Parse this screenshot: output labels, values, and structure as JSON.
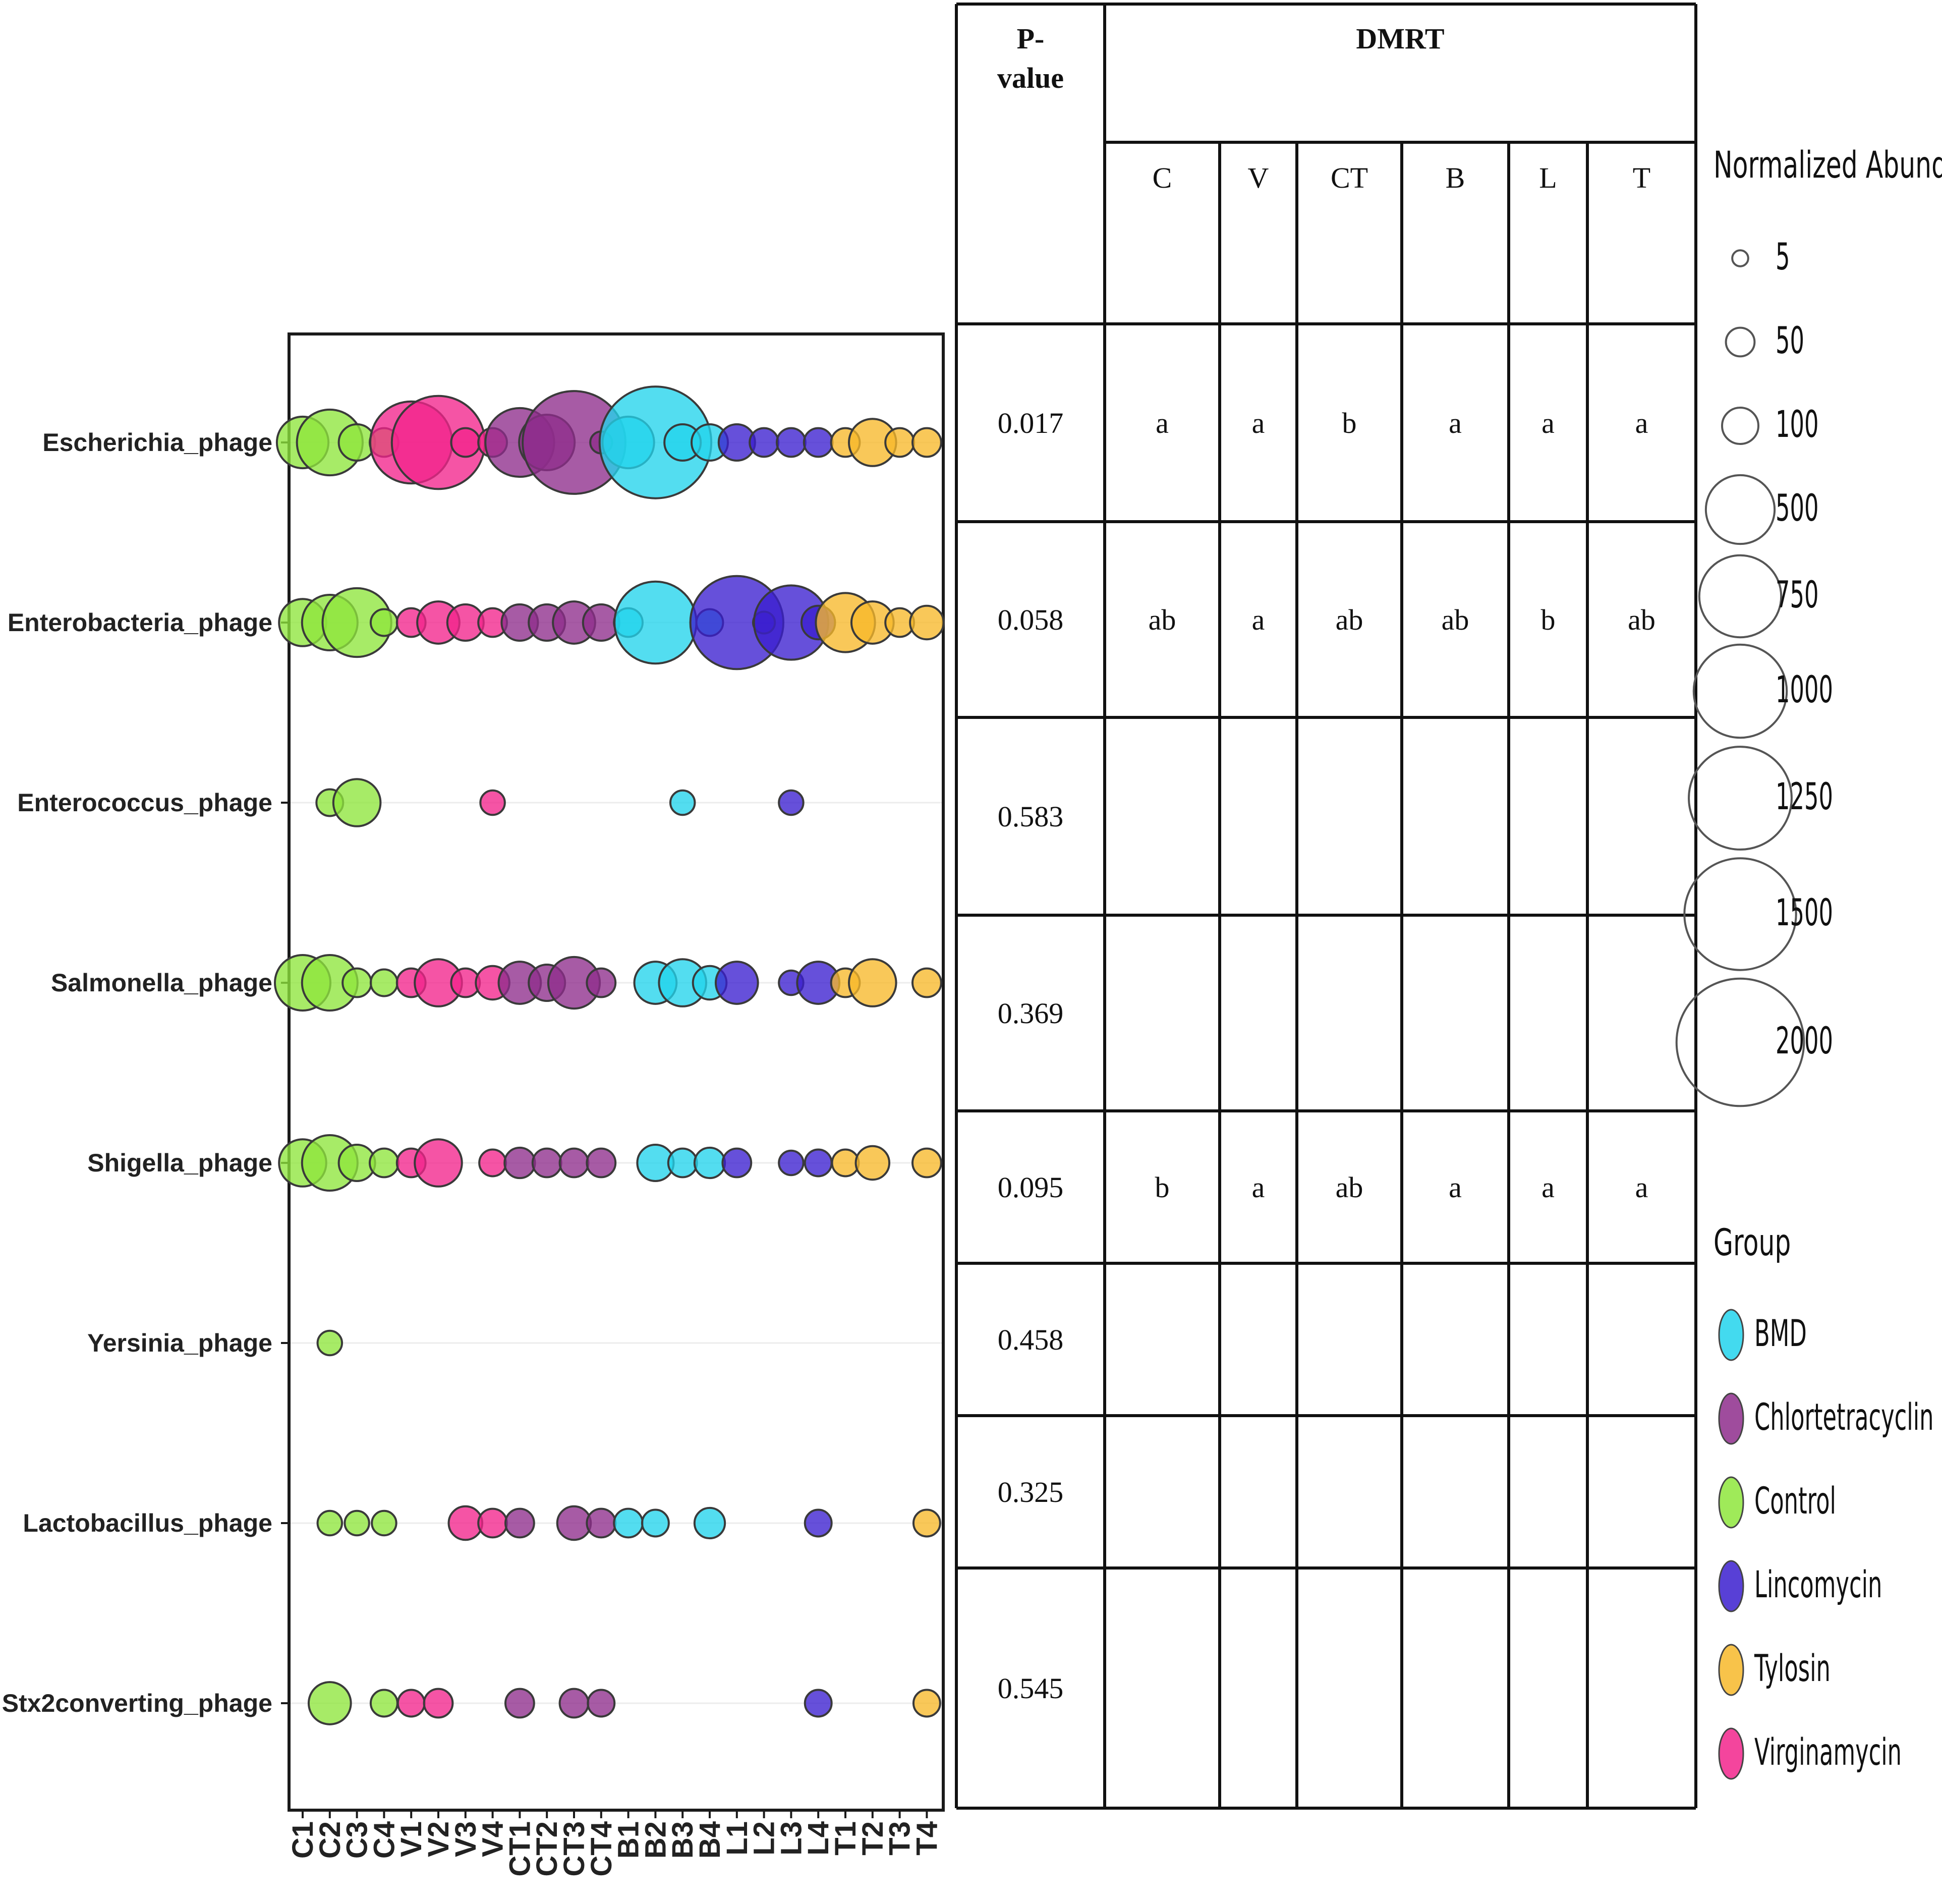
{
  "chart_data": [
    {
      "type": "scatter",
      "subtype": "bubble",
      "samples": [
        "C1",
        "C2",
        "C3",
        "C4",
        "V1",
        "V2",
        "V3",
        "V4",
        "CT1",
        "CT2",
        "CT3",
        "CT4",
        "B1",
        "B2",
        "B3",
        "B4",
        "L1",
        "L2",
        "L3",
        "L4",
        "T1",
        "T2",
        "T3",
        "T4"
      ],
      "phages": [
        "Escherichia_phage",
        "Enterobacteria_phage",
        "Enterococcus_phage",
        "Salmonella_phage",
        "Shigella_phage",
        "Yersinia_phage",
        "Lactobacillus_phage",
        "Stx2converting_phage"
      ],
      "sample_group": {
        "C": "Control",
        "V": "Virginamycin",
        "CT": "Chlortetracyclin",
        "B": "BMD",
        "L": "Lincomycin",
        "T": "Tylosin"
      },
      "group_colors": {
        "BMD": "#22d4ec",
        "Chlortetracyclin": "#8e2d8c",
        "Control": "#8ee63c",
        "Lincomycin": "#3b1fcf",
        "Tylosin": "#f7b92a",
        "Virginamycin": "#f2248c"
      },
      "abundance": [
        [
          250,
          450,
          100,
          50,
          750,
          1000,
          50,
          50,
          500,
          300,
          1250,
          20,
          250,
          1500,
          100,
          100,
          100,
          50,
          50,
          50,
          50,
          200,
          50,
          50
        ],
        [
          200,
          300,
          500,
          40,
          50,
          150,
          100,
          50,
          100,
          100,
          150,
          100,
          50,
          750,
          0,
          40,
          1000,
          20,
          600,
          80,
          350,
          150,
          50,
          80
        ],
        [
          0,
          40,
          200,
          0,
          0,
          0,
          0,
          30,
          0,
          0,
          0,
          0,
          0,
          0,
          30,
          0,
          0,
          0,
          30,
          0,
          0,
          0,
          0,
          0
        ],
        [
          300,
          300,
          50,
          40,
          50,
          200,
          50,
          80,
          150,
          100,
          250,
          50,
          0,
          150,
          200,
          80,
          150,
          0,
          30,
          150,
          50,
          200,
          0,
          50
        ],
        [
          200,
          300,
          100,
          50,
          50,
          200,
          0,
          40,
          60,
          50,
          50,
          50,
          0,
          100,
          50,
          60,
          50,
          0,
          30,
          40,
          40,
          80,
          0,
          50
        ],
        [
          0,
          30,
          0,
          0,
          0,
          0,
          0,
          0,
          0,
          0,
          0,
          0,
          0,
          0,
          0,
          0,
          0,
          0,
          0,
          0,
          0,
          0,
          0,
          0
        ],
        [
          0,
          30,
          30,
          30,
          0,
          0,
          80,
          50,
          50,
          0,
          80,
          50,
          50,
          40,
          0,
          60,
          0,
          0,
          0,
          40,
          0,
          0,
          0,
          40
        ],
        [
          0,
          150,
          0,
          40,
          40,
          50,
          0,
          0,
          50,
          0,
          50,
          40,
          0,
          0,
          0,
          0,
          0,
          0,
          0,
          40,
          0,
          0,
          0,
          40
        ]
      ]
    },
    {
      "type": "table",
      "header_pvalue": "P-value",
      "header_dmrt": "DMRT",
      "columns": [
        "C",
        "V",
        "CT",
        "B",
        "L",
        "T"
      ],
      "rows": [
        {
          "p": "0.017",
          "letters": [
            "a",
            "a",
            "b",
            "a",
            "a",
            "a"
          ]
        },
        {
          "p": "0.058",
          "letters": [
            "ab",
            "a",
            "ab",
            "ab",
            "b",
            "ab"
          ]
        },
        {
          "p": "0.583",
          "letters": [
            "",
            "",
            "",
            "",
            "",
            ""
          ]
        },
        {
          "p": "0.369",
          "letters": [
            "",
            "",
            "",
            "",
            "",
            ""
          ]
        },
        {
          "p": "0.095",
          "letters": [
            "b",
            "a",
            "ab",
            "a",
            "a",
            "a"
          ]
        },
        {
          "p": "0.458",
          "letters": [
            "",
            "",
            "",
            "",
            "",
            ""
          ]
        },
        {
          "p": "0.325",
          "letters": [
            "",
            "",
            "",
            "",
            "",
            ""
          ]
        },
        {
          "p": "0.545",
          "letters": [
            "",
            "",
            "",
            "",
            "",
            ""
          ]
        }
      ]
    }
  ],
  "legend": {
    "size_title": "Normalized Abundance",
    "size_values": [
      "5",
      "50",
      "100",
      "500",
      "750",
      "1000",
      "1250",
      "1500",
      "2000"
    ],
    "group_title": "Group",
    "groups": [
      "BMD",
      "Chlortetracyclin",
      "Control",
      "Lincomycin",
      "Tylosin",
      "Virginamycin"
    ]
  }
}
